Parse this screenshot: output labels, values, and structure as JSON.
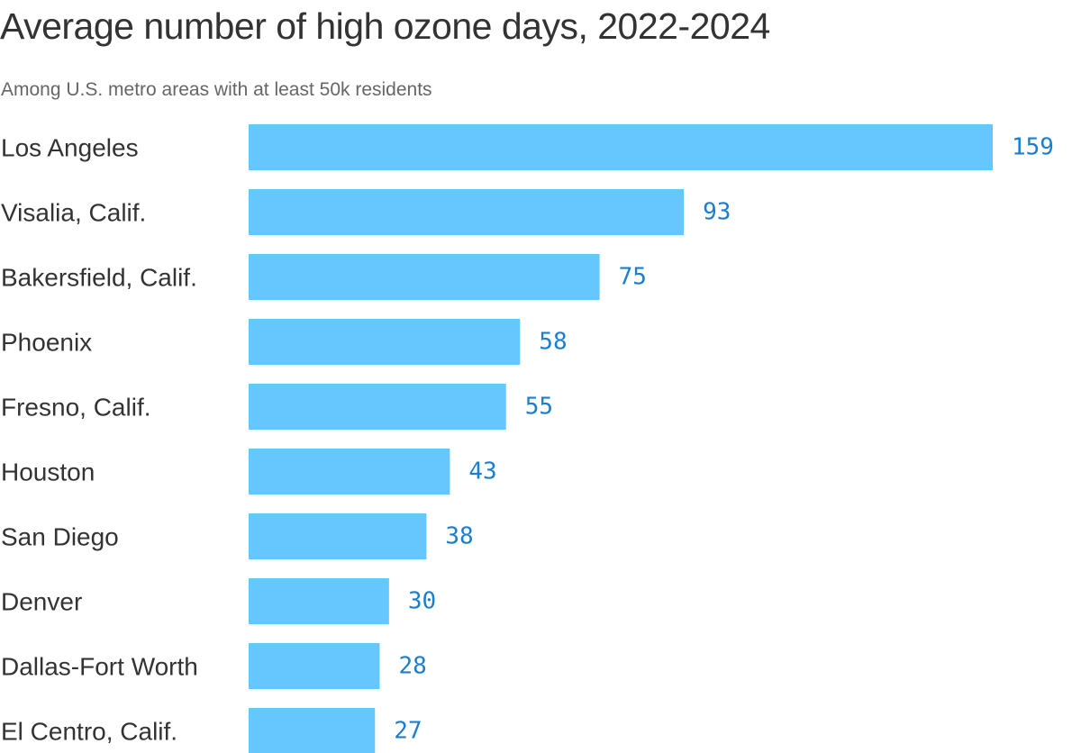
{
  "chart_data": {
    "type": "bar",
    "orientation": "horizontal",
    "title": "Average number of high ozone days, 2022-2024",
    "subtitle": "Among U.S. metro areas with at least 50k residents",
    "categories": [
      "Los Angeles",
      "Visalia, Calif.",
      "Bakersfield, Calif.",
      "Phoenix",
      "Fresno, Calif.",
      "Houston",
      "San Diego",
      "Denver",
      "Dallas-Fort Worth",
      "El Centro, Calif."
    ],
    "values": [
      159,
      93,
      75,
      58,
      55,
      43,
      38,
      30,
      28,
      27
    ],
    "xlim": [
      0,
      159
    ],
    "grid": false,
    "legend": "none",
    "bar_color": "#66c7ff",
    "label_color": "#1a7fd0"
  }
}
